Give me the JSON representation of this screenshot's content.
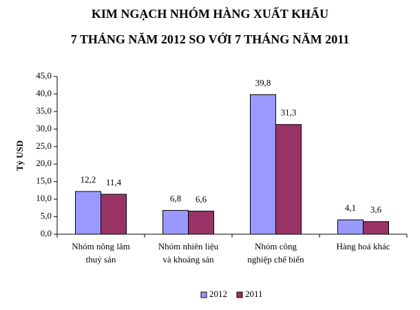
{
  "chart_data": {
    "type": "bar",
    "title": "KIM NGẠCH  NHÓM HÀNG XUẤT KHẨU",
    "subtitle": "7 THÁNG NĂM 2012 SO VỚI  7 THÁNG NĂM 2011",
    "y_label": "Tỷ USD",
    "categories": [
      "Nhóm nông lâm thuỷ sản",
      "Nhóm nhiên liệu và khoáng sản",
      "Nhóm công nghiệp chế biến",
      "Hàng hoá khác"
    ],
    "series": [
      {
        "name": "2012",
        "color": "#9999ff",
        "values": [
          12.2,
          6.8,
          39.8,
          4.1
        ],
        "value_labels": [
          "12,2",
          "6,8",
          "39,8",
          "4,1"
        ]
      },
      {
        "name": "2011",
        "color": "#993366",
        "values": [
          11.4,
          6.6,
          31.3,
          3.6
        ],
        "value_labels": [
          "11,4",
          "6,6",
          "31,3",
          "3,6"
        ]
      }
    ],
    "ylim": [
      0,
      45
    ],
    "yticks": [
      {
        "value": 0,
        "label": "0,0"
      },
      {
        "value": 5,
        "label": "5,0"
      },
      {
        "value": 10,
        "label": "10,0"
      },
      {
        "value": 15,
        "label": "15,0"
      },
      {
        "value": 20,
        "label": "20,0"
      },
      {
        "value": 25,
        "label": "25,0"
      },
      {
        "value": 30,
        "label": "30,0"
      },
      {
        "value": 35,
        "label": "35,0"
      },
      {
        "value": 40,
        "label": "40,0"
      },
      {
        "value": 45,
        "label": "45,0"
      }
    ],
    "legend": "bottom"
  }
}
